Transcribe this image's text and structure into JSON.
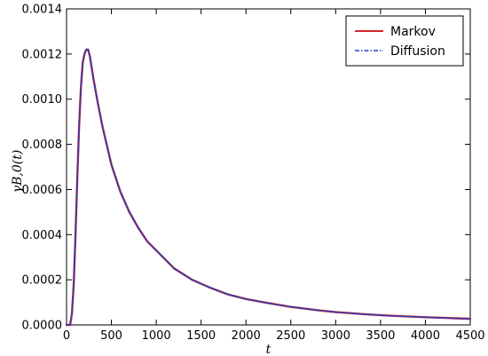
{
  "chart_data": {
    "type": "line",
    "xlabel": "t",
    "ylabel": "γB,0(t)",
    "xlim": [
      0,
      4500
    ],
    "ylim": [
      0,
      0.0014
    ],
    "x_ticks": [
      "0",
      "500",
      "1000",
      "1500",
      "2000",
      "2500",
      "3000",
      "3500",
      "4000",
      "4500"
    ],
    "y_ticks": [
      "0.0000",
      "0.0002",
      "0.0004",
      "0.0006",
      "0.0008",
      "0.0010",
      "0.0012",
      "0.0014"
    ],
    "legend": {
      "placement": "top-right"
    },
    "grid": false,
    "series": [
      {
        "name": "Markov",
        "color": "#d62728",
        "style": "solid",
        "x": [
          0,
          40,
          60,
          80,
          100,
          120,
          140,
          160,
          180,
          200,
          220,
          240,
          260,
          280,
          300,
          350,
          400,
          500,
          600,
          700,
          800,
          900,
          1000,
          1200,
          1400,
          1600,
          1800,
          2000,
          2200,
          2500,
          2800,
          3000,
          3300,
          3600,
          4000,
          4300,
          4500
        ],
        "y": [
          0,
          0,
          5e-05,
          0.00018,
          0.0004,
          0.00065,
          0.00088,
          0.00105,
          0.00116,
          0.0012,
          0.00122,
          0.00122,
          0.00119,
          0.00114,
          0.00109,
          0.00098,
          0.00088,
          0.00071,
          0.00059,
          0.0005,
          0.00043,
          0.00037,
          0.00033,
          0.00025,
          0.0002,
          0.000165,
          0.000135,
          0.000115,
          0.0001,
          8e-05,
          6.5e-05,
          5.7e-05,
          4.8e-05,
          4.1e-05,
          3.4e-05,
          3e-05,
          2.7e-05
        ]
      },
      {
        "name": "Diffusion",
        "color": "#1f3fbf",
        "style": "dashdot",
        "x": [
          0,
          40,
          60,
          80,
          100,
          120,
          140,
          160,
          180,
          200,
          220,
          240,
          260,
          280,
          300,
          350,
          400,
          500,
          600,
          700,
          800,
          900,
          1000,
          1200,
          1400,
          1600,
          1800,
          2000,
          2200,
          2500,
          2800,
          3000,
          3300,
          3600,
          4000,
          4300,
          4500
        ],
        "y": [
          0,
          0,
          5e-05,
          0.00018,
          0.0004,
          0.00065,
          0.00088,
          0.00105,
          0.00116,
          0.0012,
          0.00122,
          0.00122,
          0.00119,
          0.00114,
          0.00109,
          0.00098,
          0.00088,
          0.00071,
          0.00059,
          0.0005,
          0.00043,
          0.00037,
          0.00033,
          0.00025,
          0.0002,
          0.000165,
          0.000135,
          0.000115,
          0.0001,
          8e-05,
          6.5e-05,
          5.7e-05,
          4.8e-05,
          4.1e-05,
          3.4e-05,
          3e-05,
          2.7e-05
        ]
      }
    ]
  }
}
